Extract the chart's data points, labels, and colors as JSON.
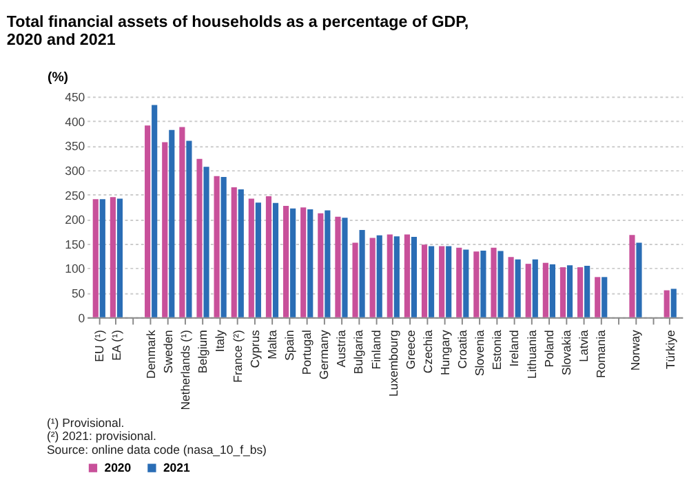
{
  "chart_data": {
    "type": "bar",
    "title": "Total financial assets of households as a percentage of GDP, 2020 and 2021",
    "ylabel": "(%)",
    "categories": [
      "EU (¹)",
      "EA (¹)",
      null,
      "Denmark",
      "Sweden",
      "Netherlands (¹)",
      "Belgium",
      "Italy",
      "France (²)",
      "Cyprus",
      "Malta",
      "Spain",
      "Portugal",
      "Germany",
      "Austria",
      "Bulgaria",
      "Finland",
      "Luxembourg",
      "Greece",
      "Czechia",
      "Hungary",
      "Croatia",
      "Slovenia",
      "Estonia",
      "Ireland",
      "Lithuania",
      "Poland",
      "Slovakia",
      "Latvia",
      "Romania",
      null,
      "Norway",
      null,
      "Türkiye"
    ],
    "series": [
      {
        "name": "2020",
        "color": "#c8509a",
        "values": [
          241,
          245,
          null,
          391,
          357,
          388,
          323,
          288,
          265,
          242,
          247,
          227,
          224,
          212,
          205,
          152,
          162,
          169,
          169,
          148,
          145,
          142,
          134,
          142,
          123,
          109,
          111,
          102,
          102,
          82,
          null,
          168,
          null,
          55
        ]
      },
      {
        "name": "2021",
        "color": "#2a6db5",
        "values": [
          241,
          242,
          null,
          433,
          382,
          360,
          307,
          286,
          261,
          234,
          233,
          222,
          220,
          218,
          203,
          178,
          167,
          165,
          164,
          145,
          145,
          138,
          136,
          135,
          118,
          118,
          108,
          106,
          105,
          82,
          null,
          152,
          null,
          58
        ]
      }
    ],
    "ylim": [
      0,
      450
    ],
    "yticks": [
      0,
      50,
      100,
      150,
      200,
      250,
      300,
      350,
      400,
      450
    ],
    "grid": "y",
    "legend": "bottom",
    "annotations": [
      "(¹) Provisional.",
      "(²) 2021: provisional.",
      "Source: online data code (nasa_10_f_bs)"
    ]
  }
}
